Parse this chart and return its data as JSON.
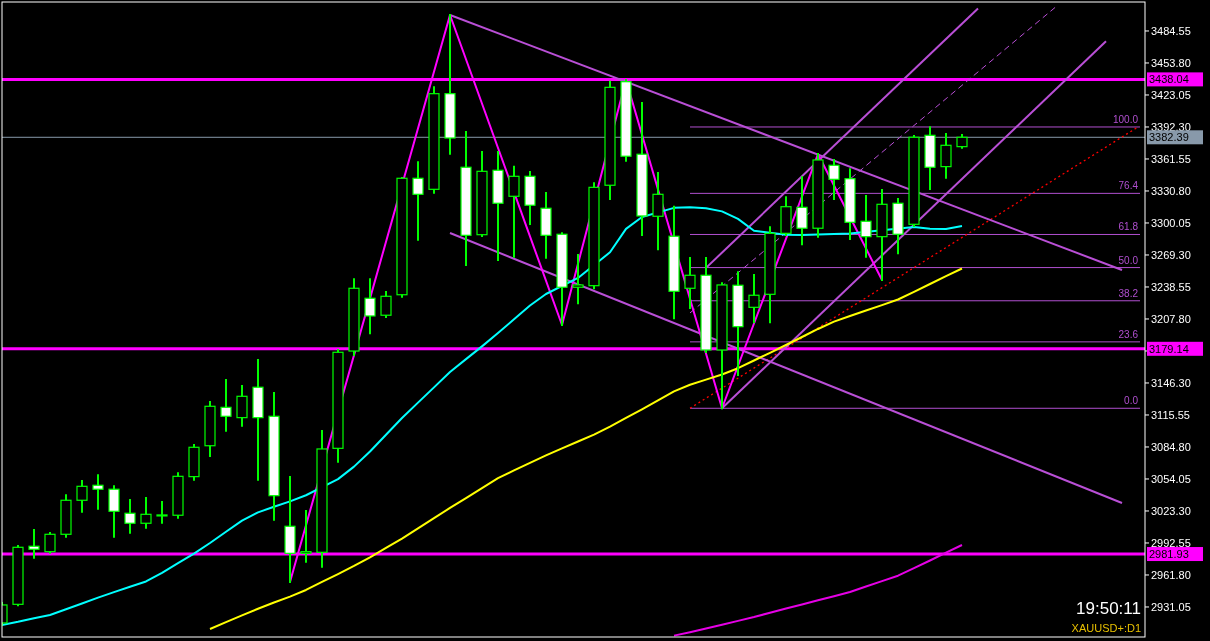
{
  "chart_data": {
    "type": "candlestick",
    "categories": [
      null,
      null,
      null,
      null,
      null,
      null,
      null,
      null,
      null,
      null,
      null,
      null,
      null,
      null,
      null,
      null,
      null,
      null,
      null,
      null,
      null,
      null,
      null,
      null,
      null,
      null,
      null,
      null,
      null,
      null,
      null,
      null,
      null,
      null,
      null,
      null,
      null,
      null,
      null,
      null,
      null,
      null,
      null,
      null,
      null,
      null,
      null,
      null,
      null,
      null,
      null,
      null,
      null,
      null,
      null,
      null,
      null,
      null,
      null,
      null,
      null,
      null,
      null,
      null,
      null,
      null,
      null,
      null,
      null,
      null,
      null,
      null
    ],
    "ylim": [
      2902.2,
      3512.4
    ],
    "yticks": [
      3484.55,
      {
        "value": 3453.8,
        "label": "3453.80"
      },
      3423.05,
      {
        "value": 3392.3,
        "label": "3392.30"
      },
      3361.55,
      {
        "value": 3330.8,
        "label": "3330.80"
      },
      3300.05,
      {
        "value": 3269.3,
        "label": "3269.30"
      },
      3238.55,
      {
        "value": 3207.8,
        "label": "3207.80"
      },
      {
        "value": 3177.05,
        "label": null
      },
      {
        "value": 3146.3,
        "label": "3146.30"
      },
      3115.55,
      {
        "value": 3084.8,
        "label": "3084.80"
      },
      3054.05,
      {
        "value": 3023.3,
        "label": "3023.30"
      },
      2992.55,
      {
        "value": 2961.8,
        "label": "2961.80"
      },
      2931.05
    ],
    "tick_labels": "y",
    "series": [
      {
        "type": "candlestick",
        "color": "#00ff00",
        "ohlc": [
          [
            2915.7,
            2934.9,
            2913.8,
            2933.0
          ],
          [
            2933.6,
            2989.7,
            2932.7,
            2988.4
          ],
          [
            2989.4,
            3005.0,
            2978.4,
            2986.5
          ],
          [
            2984.2,
            3002.2,
            2983.2,
            3000.9
          ],
          [
            3000.9,
            3038.4,
            2998.6,
            3033.6
          ],
          [
            3033.6,
            3052.1,
            3022.6,
            3047.0
          ],
          [
            3048.0,
            3057.6,
            3025.5,
            3044.2
          ],
          [
            3044.2,
            3047.0,
            2998.6,
            3023.0
          ],
          [
            3021.1,
            3033.8,
            3002.4,
            3011.5
          ],
          [
            3011.5,
            3035.8,
            3007.3,
            3020.1
          ],
          [
            3019.0,
            3031.9,
            3012.1,
            3019.5
          ],
          [
            3019.2,
            3059.5,
            3016.9,
            3056.6
          ],
          [
            3056.3,
            3086.7,
            3053.4,
            3084.5
          ],
          [
            3086.0,
            3128.0,
            3076.2,
            3123.9
          ],
          [
            3122.9,
            3149.2,
            3100.5,
            3114.3
          ],
          [
            3113.0,
            3143.4,
            3105.3,
            3133.5
          ],
          [
            3142.2,
            3168.4,
            3053.4,
            3113.0
          ],
          [
            3114.3,
            3136.7,
            3014.9,
            3038.0
          ],
          [
            3008.6,
            3056.0,
            2955.1,
            2982.6
          ],
          [
            2982.6,
            3023.3,
            2974.6,
            2984.2
          ],
          [
            2983.6,
            3100.2,
            2969.8,
            3082.9
          ],
          [
            3083.5,
            3178.0,
            3070.7,
            3175.8
          ],
          [
            3177.0,
            3245.9,
            3173.2,
            3237.3
          ],
          [
            3227.7,
            3245.9,
            3194.1,
            3210.7
          ],
          [
            3211.4,
            3233.7,
            3209.7,
            3229.6
          ],
          [
            3231.1,
            3343.3,
            3229.2,
            3343.0
          ],
          [
            3343.0,
            3358.4,
            3284.0,
            3327.6
          ],
          [
            3332.4,
            3430.4,
            3329.2,
            3424.3
          ],
          [
            3424.3,
            3499.9,
            3366.6,
            3381.7
          ],
          [
            3353.6,
            3387.5,
            3259.7,
            3288.2
          ],
          [
            3288.8,
            3368.3,
            3287.5,
            3349.7
          ],
          [
            3350.7,
            3368.3,
            3264.5,
            3319.0
          ],
          [
            3325.7,
            3354.2,
            3267.7,
            3344.9
          ],
          [
            3344.9,
            3349.0,
            3299.1,
            3317.1
          ],
          [
            3314.2,
            3328.9,
            3266.7,
            3288.2
          ],
          [
            3289.2,
            3290.1,
            3202.0,
            3238.3
          ],
          [
            3238.3,
            3269.3,
            3222.9,
            3240.5
          ],
          [
            3239.8,
            3338.2,
            3237.3,
            3334.3
          ],
          [
            3336.3,
            3435.8,
            3323.1,
            3430.4
          ],
          [
            3435.8,
            3437.5,
            3359.9,
            3364.2
          ],
          [
            3366.1,
            3415.4,
            3288.5,
            3306.8
          ],
          [
            3306.5,
            3348.1,
            3274.8,
            3327.6
          ],
          [
            3287.3,
            3315.7,
            3208.5,
            3234.4
          ],
          [
            3237.3,
            3266.4,
            3218.4,
            3249.8
          ],
          [
            3249.8,
            3266.4,
            3176.1,
            3178.0
          ],
          [
            3178.0,
            3242.1,
            3122.0,
            3240.5
          ],
          [
            3240.2,
            3252.7,
            3154.0,
            3200.4
          ],
          [
            3219.0,
            3250.1,
            3204.6,
            3230.6
          ],
          [
            3231.5,
            3295.9,
            3204.6,
            3290.1
          ],
          [
            3290.1,
            3324.7,
            3288.5,
            3315.7
          ],
          [
            3315.1,
            3344.0,
            3279.6,
            3295.0
          ],
          [
            3295.0,
            3366.3,
            3286.9,
            3360.6
          ],
          [
            3355.5,
            3360.6,
            3323.1,
            3342.0
          ],
          [
            3342.6,
            3351.6,
            3284.7,
            3300.7
          ],
          [
            3301.7,
            3326.0,
            3267.7,
            3286.9
          ],
          [
            3286.9,
            3331.8,
            3245.3,
            3318.0
          ],
          [
            3319.0,
            3323.1,
            3270.9,
            3289.2
          ],
          [
            3298.8,
            3383.6,
            3297.2,
            3382.4
          ],
          [
            3384.3,
            3392.0,
            3332.7,
            3353.6
          ],
          [
            3354.2,
            3385.6,
            3343.6,
            3374.7
          ],
          [
            3373.4,
            3384.6,
            3372.4,
            3382.39
          ],
          null,
          null,
          null,
          null,
          null,
          null,
          null,
          null,
          null,
          null,
          null
        ]
      },
      {
        "type": "line",
        "color": "#00ffff",
        "line_style": "solid",
        "values": [
          2913.8,
          2916.8,
          2920.3,
          2923.4,
          2928.9,
          2934.4,
          2940.0,
          2945.3,
          2950.5,
          2955.6,
          2963.9,
          2973.1,
          2982.4,
          2992.5,
          3003.3,
          3014.0,
          3022.0,
          3027.3,
          3032.5,
          3038.4,
          null,
          3053.9,
          3065.9,
          3080.5,
          3096.6,
          3112.6,
          3127.4,
          3142.1,
          3156.9,
          3169.2,
          3181.5,
          3194.3,
          3207.5,
          3220.7,
          3231.8,
          null,
          3247.2,
          null,
          3271.9,
          3294.4,
          3305.8,
          null,
          3314.6,
          3315.1,
          3314.3,
          3311.2,
          3304.0,
          3292.6,
          null,
          3288.7,
          3288.6,
          3289.0,
          3289.5,
          3290.0,
          null,
          null,
          null,
          3296.2,
          3294.4,
          3294.3,
          3297.2,
          null,
          null,
          null,
          null,
          null,
          null,
          null,
          null,
          null,
          null,
          null
        ]
      },
      {
        "type": "line",
        "color": "#ffff00",
        "line_style": "solid",
        "values": [
          null,
          null,
          null,
          null,
          null,
          null,
          null,
          null,
          null,
          null,
          null,
          null,
          null,
          2909.9,
          2916.5,
          2923.0,
          2929.3,
          2935.4,
          2941.0,
          2947.4,
          2955.1,
          2962.7,
          2970.5,
          2978.8,
          2987.8,
          2996.7,
          3006.5,
          3016.4,
          3026.2,
          3035.7,
          3045.2,
          3054.8,
          3062.3,
          3069.6,
          3076.7,
          3083.4,
          3090.1,
          3096.7,
          3104.4,
          3112.7,
          3121.0,
          3129.5,
          3138.3,
          3144.6,
          3149.5,
          3154.4,
          3160.5,
          3167.9,
          3175.3,
          3182.8,
          3190.5,
          3198.2,
          3205.3,
          3210.6,
          3215.9,
          3221.1,
          3226.5,
          3233.9,
          3241.4,
          3248.9,
          3256.3,
          null,
          null,
          null,
          null,
          null,
          null,
          null,
          null,
          null,
          null,
          null
        ]
      },
      {
        "type": "line",
        "color": "#e600e6",
        "line_style": "solid",
        "values": [
          null,
          null,
          null,
          null,
          null,
          null,
          null,
          null,
          null,
          null,
          null,
          null,
          null,
          null,
          null,
          null,
          null,
          null,
          null,
          null,
          null,
          null,
          null,
          null,
          null,
          null,
          null,
          null,
          null,
          null,
          null,
          null,
          null,
          null,
          null,
          null,
          null,
          null,
          null,
          null,
          null,
          null,
          2903.5,
          2906.8,
          2910.3,
          2914.0,
          2917.7,
          2921.4,
          2925.5,
          2929.5,
          2933.4,
          2937.5,
          2941.4,
          2945.5,
          2950.7,
          2955.9,
          2961.1,
          2968.3,
          2975.7,
          2983.2,
          2990.6,
          null,
          null,
          null,
          null,
          null,
          null,
          null,
          null,
          null,
          null,
          null
        ]
      },
      {
        "type": "line",
        "color": "#ff00ff",
        "line_style": "solid",
        "values": [
          null,
          null,
          null,
          null,
          null,
          null,
          null,
          null,
          null,
          null,
          null,
          null,
          null,
          null,
          null,
          null,
          null,
          null,
          2955.1,
          null,
          null,
          null,
          null,
          null,
          null,
          null,
          null,
          null,
          3499.9,
          null,
          null,
          null,
          null,
          null,
          null,
          3202.0,
          null,
          null,
          null,
          3437.5,
          null,
          null,
          null,
          null,
          null,
          3122.0,
          null,
          null,
          null,
          null,
          null,
          3366.3,
          null,
          null,
          null,
          3245.3,
          null,
          null,
          null,
          null,
          null,
          null,
          null,
          null,
          null,
          null,
          null,
          null,
          null,
          null,
          null,
          null
        ]
      },
      {
        "type": "line",
        "color": "#b94fd6",
        "line_style": "solid",
        "values": [
          null,
          null,
          null,
          null,
          null,
          null,
          null,
          null,
          null,
          null,
          null,
          null,
          null,
          null,
          null,
          null,
          null,
          null,
          null,
          null,
          null,
          null,
          null,
          null,
          null,
          null,
          null,
          null,
          3499.9,
          null,
          null,
          null,
          null,
          null,
          null,
          null,
          null,
          null,
          null,
          null,
          null,
          null,
          null,
          null,
          null,
          null,
          null,
          null,
          null,
          null,
          null,
          null,
          null,
          null,
          null,
          null,
          null,
          null,
          null,
          null,
          null,
          null,
          null,
          null,
          null,
          null,
          null,
          null,
          null,
          null,
          3254.9,
          null
        ]
      },
      {
        "type": "line",
        "color": "#b94fd6",
        "line_style": "solid",
        "values": [
          null,
          null,
          null,
          null,
          null,
          null,
          null,
          null,
          null,
          null,
          null,
          null,
          null,
          null,
          null,
          null,
          null,
          null,
          null,
          null,
          null,
          null,
          null,
          null,
          null,
          null,
          null,
          null,
          3290.4,
          null,
          null,
          null,
          null,
          null,
          null,
          null,
          null,
          null,
          null,
          null,
          null,
          null,
          null,
          null,
          null,
          null,
          null,
          null,
          null,
          null,
          null,
          null,
          null,
          null,
          null,
          null,
          null,
          null,
          null,
          null,
          null,
          null,
          null,
          null,
          null,
          null,
          null,
          null,
          null,
          null,
          3031.0,
          null
        ]
      },
      {
        "type": "line",
        "color": "#b94fd6",
        "line_style": "solid",
        "values": [
          null,
          null,
          null,
          null,
          null,
          null,
          null,
          null,
          null,
          null,
          null,
          null,
          null,
          null,
          null,
          null,
          null,
          null,
          null,
          null,
          null,
          null,
          null,
          null,
          null,
          null,
          null,
          null,
          null,
          null,
          null,
          null,
          null,
          null,
          null,
          null,
          null,
          null,
          null,
          null,
          null,
          null,
          null,
          null,
          3256.9,
          null,
          null,
          null,
          null,
          null,
          null,
          null,
          null,
          null,
          null,
          null,
          null,
          null,
          null,
          null,
          null,
          3506.2,
          null,
          null,
          null,
          null,
          null,
          null,
          null,
          null,
          null,
          null
        ]
      },
      {
        "type": "line",
        "color": "#b94fd6",
        "line_style": "solid",
        "values": [
          null,
          null,
          null,
          null,
          null,
          null,
          null,
          null,
          null,
          null,
          null,
          null,
          null,
          null,
          null,
          null,
          null,
          null,
          null,
          null,
          null,
          null,
          null,
          null,
          null,
          null,
          null,
          null,
          null,
          null,
          null,
          null,
          null,
          null,
          null,
          null,
          null,
          null,
          null,
          null,
          null,
          null,
          null,
          null,
          null,
          3122.0,
          null,
          null,
          null,
          null,
          null,
          null,
          null,
          null,
          null,
          null,
          null,
          null,
          null,
          null,
          null,
          null,
          null,
          null,
          null,
          null,
          null,
          null,
          null,
          3474.6,
          null,
          null
        ]
      },
      {
        "type": "line",
        "color": "#b94fd6",
        "line_style": "dashed",
        "values": [
          null,
          null,
          null,
          null,
          null,
          null,
          null,
          null,
          null,
          null,
          null,
          null,
          null,
          null,
          null,
          null,
          null,
          null,
          null,
          null,
          null,
          null,
          null,
          null,
          null,
          null,
          null,
          null,
          null,
          null,
          null,
          null,
          null,
          null,
          null,
          null,
          null,
          null,
          null,
          null,
          null,
          null,
          null,
          3213.6,
          null,
          null,
          null,
          null,
          null,
          null,
          null,
          null,
          null,
          null,
          null,
          null,
          null,
          null,
          null,
          null,
          null,
          null,
          null,
          null,
          null,
          null,
          3509.5,
          null,
          null,
          null,
          null,
          null
        ]
      },
      {
        "type": "line",
        "color": "#ff0000",
        "line_style": "dotted",
        "values": [
          null,
          null,
          null,
          null,
          null,
          null,
          null,
          null,
          null,
          null,
          null,
          null,
          null,
          null,
          null,
          null,
          null,
          null,
          null,
          null,
          null,
          null,
          null,
          null,
          null,
          null,
          null,
          null,
          null,
          null,
          null,
          null,
          null,
          null,
          null,
          null,
          null,
          null,
          null,
          null,
          null,
          null,
          null,
          3122.0,
          null,
          null,
          null,
          null,
          null,
          null,
          null,
          null,
          null,
          null,
          null,
          null,
          null,
          null,
          null,
          null,
          null,
          null,
          null,
          null,
          null,
          null,
          null,
          null,
          null,
          null,
          null,
          3392.3
        ]
      }
    ],
    "ref_lines": [
      {
        "axis": "y",
        "value": 3438.04,
        "label": "3438.04",
        "color": "#ff00ff"
      },
      {
        "axis": "y",
        "value": 3382.39,
        "label": "3382.39",
        "color": "#8899aa"
      },
      {
        "axis": "y",
        "value": 3179.14,
        "label": "3179.14",
        "color": "#ff00ff"
      },
      {
        "axis": "y",
        "value": 2981.93,
        "label": "2981.93",
        "color": "#ff00ff"
      },
      {
        "axis": "y",
        "value": 3392.3,
        "color": "#b04fcf"
      },
      {
        "axis": "y",
        "value": 3328.5,
        "color": "#b04fcf"
      },
      {
        "axis": "y",
        "value": 3289.0,
        "color": "#b04fcf"
      },
      {
        "axis": "y",
        "value": 3257.2,
        "color": "#b04fcf"
      },
      {
        "axis": "y",
        "value": 3225.3,
        "color": "#b04fcf"
      },
      {
        "axis": "y",
        "value": 3185.8,
        "color": "#b04fcf"
      },
      {
        "axis": "y",
        "value": 3122.0,
        "color": "#b04fcf"
      }
    ],
    "annotations": [
      "19:50:11",
      "XAUUSD+:D1",
      {
        "text": "100.0",
        "y": 3392.3
      },
      {
        "text": "76.4",
        "y": 3328.5
      },
      {
        "text": "61.8",
        "y": 3289.0
      },
      {
        "text": "50.0",
        "y": 3257.2
      },
      {
        "text": "38.2",
        "y": 3225.3
      },
      {
        "text": "23.6",
        "y": 3185.8
      },
      {
        "text": "0.0",
        "y": 3122.0
      }
    ]
  }
}
